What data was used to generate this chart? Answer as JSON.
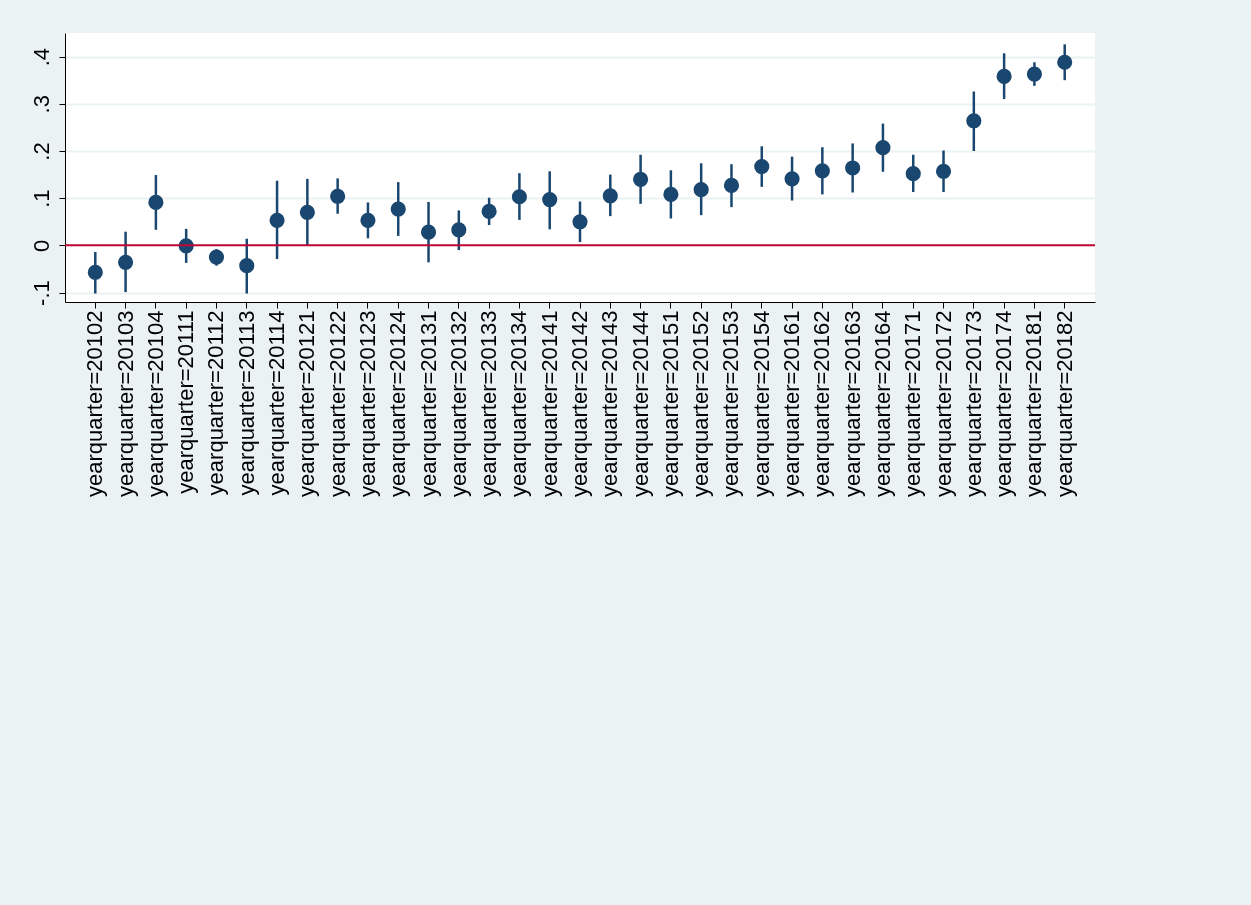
{
  "chart_data": {
    "type": "scatter",
    "categories": [
      "yearquarter=20102",
      "yearquarter=20103",
      "yearquarter=20104",
      "yearquarter=20111",
      "yearquarter=20112",
      "yearquarter=20113",
      "yearquarter=20114",
      "yearquarter=20121",
      "yearquarter=20122",
      "yearquarter=20123",
      "yearquarter=20124",
      "yearquarter=20131",
      "yearquarter=20132",
      "yearquarter=20133",
      "yearquarter=20134",
      "yearquarter=20141",
      "yearquarter=20142",
      "yearquarter=20143",
      "yearquarter=20144",
      "yearquarter=20151",
      "yearquarter=20152",
      "yearquarter=20153",
      "yearquarter=20154",
      "yearquarter=20161",
      "yearquarter=20162",
      "yearquarter=20163",
      "yearquarter=20164",
      "yearquarter=20171",
      "yearquarter=20172",
      "yearquarter=20173",
      "yearquarter=20174",
      "yearquarter=20181",
      "yearquarter=20182"
    ],
    "series": [
      {
        "color": "#1a476f",
        "values": [
          -0.057,
          -0.036,
          0.091,
          -0.001,
          -0.025,
          -0.043,
          0.053,
          0.07,
          0.104,
          0.053,
          0.077,
          0.028,
          0.033,
          0.072,
          0.103,
          0.097,
          0.05,
          0.105,
          0.14,
          0.108,
          0.118,
          0.127,
          0.167,
          0.141,
          0.158,
          0.164,
          0.207,
          0.152,
          0.157,
          0.264,
          0.358,
          0.363,
          0.388
        ],
        "errors": [
          [
            -0.102,
            -0.014
          ],
          [
            -0.099,
            0.029
          ],
          [
            0.033,
            0.149
          ],
          [
            -0.037,
            0.035
          ],
          [
            -0.043,
            -0.008
          ],
          [
            -0.102,
            0.014
          ],
          [
            -0.029,
            0.137
          ],
          [
            0.001,
            0.141
          ],
          [
            0.067,
            0.142
          ],
          [
            0.015,
            0.091
          ],
          [
            0.02,
            0.134
          ],
          [
            -0.036,
            0.092
          ],
          [
            -0.01,
            0.074
          ],
          [
            0.043,
            0.101
          ],
          [
            0.054,
            0.153
          ],
          [
            0.034,
            0.157
          ],
          [
            0.007,
            0.093
          ],
          [
            0.062,
            0.15
          ],
          [
            0.088,
            0.192
          ],
          [
            0.057,
            0.159
          ],
          [
            0.064,
            0.174
          ],
          [
            0.081,
            0.172
          ],
          [
            0.124,
            0.21
          ],
          [
            0.095,
            0.188
          ],
          [
            0.108,
            0.208
          ],
          [
            0.112,
            0.216
          ],
          [
            0.156,
            0.258
          ],
          [
            0.113,
            0.192
          ],
          [
            0.113,
            0.201
          ],
          [
            0.2,
            0.326
          ],
          [
            0.31,
            0.407
          ],
          [
            0.338,
            0.388
          ],
          [
            0.35,
            0.426
          ]
        ]
      }
    ],
    "ylim": [
      -0.12,
      0.45
    ],
    "yticks": [
      {
        "value": -0.1,
        "label": "-.1"
      },
      0,
      {
        "value": 0.1,
        "label": ".1"
      },
      {
        "value": 0.2,
        "label": ".2"
      },
      {
        "value": 0.3,
        "label": ".3"
      },
      {
        "value": 0.4,
        "label": ".4"
      }
    ],
    "ref_lines": [
      {
        "axis": "y",
        "value": 0,
        "color": "#c10534"
      }
    ],
    "grid": "y",
    "marker": "circle"
  }
}
